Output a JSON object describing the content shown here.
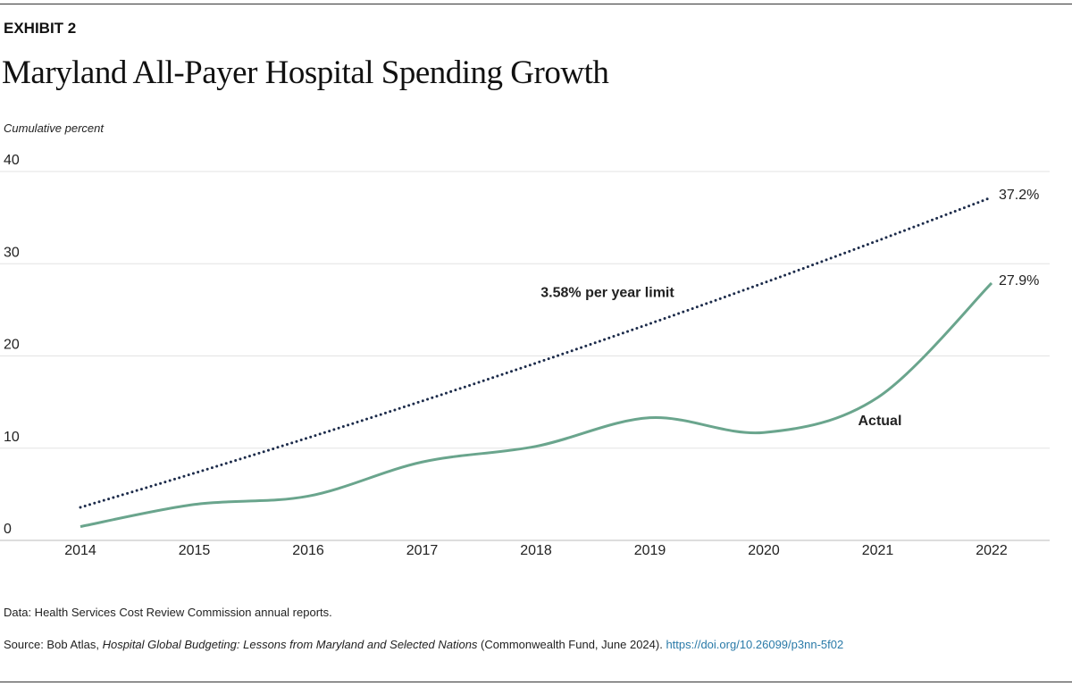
{
  "chart_data": {
    "type": "line",
    "label": "EXHIBIT 2",
    "title": "Maryland All-Payer Hospital Spending Growth",
    "y_axis_label": "Cumulative percent",
    "categories": [
      "2014",
      "2015",
      "2016",
      "2017",
      "2018",
      "2019",
      "2020",
      "2021",
      "2022"
    ],
    "series": [
      {
        "name": "3.58% per year limit",
        "color": "#1c2b4a",
        "line_style": "dotted",
        "values": [
          3.58,
          7.29,
          11.13,
          15.11,
          19.23,
          23.5,
          27.92,
          32.5,
          37.2
        ],
        "value_labels": [
          null,
          null,
          null,
          null,
          null,
          null,
          null,
          null,
          "37.2%"
        ]
      },
      {
        "name": "Actual",
        "color": "#6aa58d",
        "line_style": "solid",
        "values": [
          1.5,
          3.9,
          4.8,
          8.5,
          10.2,
          13.3,
          11.7,
          15.5,
          27.9
        ],
        "value_labels": [
          null,
          null,
          null,
          null,
          null,
          null,
          null,
          null,
          "27.9%"
        ]
      }
    ],
    "ylim": [
      0,
      40
    ],
    "yticks": [
      0,
      10,
      20,
      30,
      40
    ],
    "grid": true,
    "notes": {
      "data": "Data: Health Services Cost Review Commission annual reports.",
      "source_prefix": "Source: Bob Atlas, ",
      "source_title": "Hospital Global Budgeting: Lessons from Maryland and Selected Nations",
      "source_suffix": " (Commonwealth Fund, June 2024). ",
      "source_link": "https://doi.org/10.26099/p3nn-5f02"
    }
  }
}
